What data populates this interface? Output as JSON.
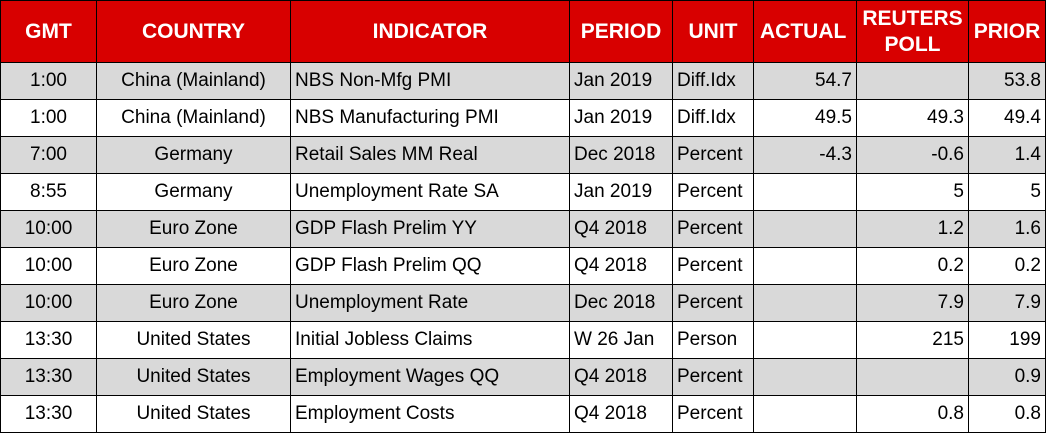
{
  "headers": {
    "gmt": "GMT",
    "country": "COUNTRY",
    "indicator": "INDICATOR",
    "period": "PERIOD",
    "unit": "UNIT",
    "actual": "ACTUAL",
    "poll_line1": "REUTERS",
    "poll_line2": "POLL",
    "prior": "PRIOR"
  },
  "rows": [
    {
      "gmt": "1:00",
      "country": "China (Mainland)",
      "indicator": "NBS Non-Mfg PMI",
      "period": "Jan 2019",
      "unit": "Diff.Idx",
      "actual": "54.7",
      "poll": "",
      "prior": "53.8"
    },
    {
      "gmt": "1:00",
      "country": "China (Mainland)",
      "indicator": "NBS Manufacturing PMI",
      "period": "Jan 2019",
      "unit": "Diff.Idx",
      "actual": "49.5",
      "poll": "49.3",
      "prior": "49.4"
    },
    {
      "gmt": "7:00",
      "country": "Germany",
      "indicator": "Retail Sales MM Real",
      "period": "Dec 2018",
      "unit": "Percent",
      "actual": "-4.3",
      "poll": "-0.6",
      "prior": "1.4"
    },
    {
      "gmt": "8:55",
      "country": "Germany",
      "indicator": "Unemployment Rate SA",
      "period": "Jan 2019",
      "unit": "Percent",
      "actual": "",
      "poll": "5",
      "prior": "5"
    },
    {
      "gmt": "10:00",
      "country": "Euro Zone",
      "indicator": "GDP Flash Prelim YY",
      "period": "Q4 2018",
      "unit": "Percent",
      "actual": "",
      "poll": "1.2",
      "prior": "1.6"
    },
    {
      "gmt": "10:00",
      "country": "Euro Zone",
      "indicator": "GDP Flash Prelim QQ",
      "period": "Q4 2018",
      "unit": "Percent",
      "actual": "",
      "poll": "0.2",
      "prior": "0.2"
    },
    {
      "gmt": "10:00",
      "country": "Euro Zone",
      "indicator": "Unemployment Rate",
      "period": "Dec 2018",
      "unit": "Percent",
      "actual": "",
      "poll": "7.9",
      "prior": "7.9"
    },
    {
      "gmt": "13:30",
      "country": "United States",
      "indicator": "Initial Jobless Claims",
      "period": "W 26 Jan",
      "unit": "Person",
      "actual": "",
      "poll": "215",
      "prior": "199"
    },
    {
      "gmt": "13:30",
      "country": "United States",
      "indicator": "Employment Wages QQ",
      "period": "Q4 2018",
      "unit": "Percent",
      "actual": "",
      "poll": "",
      "prior": "0.9"
    },
    {
      "gmt": "13:30",
      "country": "United States",
      "indicator": "Employment Costs",
      "period": "Q4 2018",
      "unit": "Percent",
      "actual": "",
      "poll": "0.8",
      "prior": "0.8"
    }
  ],
  "colors": {
    "header_bg": "#d80000",
    "header_text": "#ffffff",
    "shaded_row": "#d9d9d9",
    "grid": "#000000"
  }
}
